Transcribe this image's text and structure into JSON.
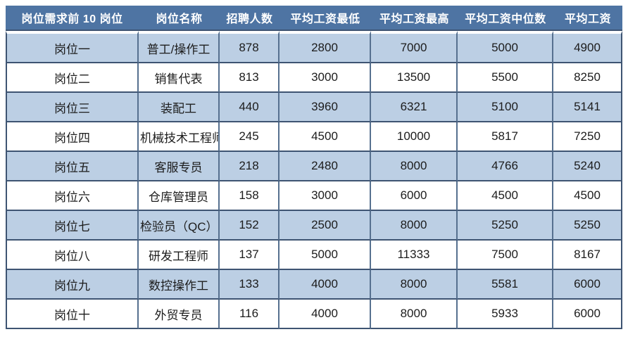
{
  "table": {
    "headers": [
      "岗位需求前 10 岗位",
      "岗位名称",
      "招聘人数",
      "平均工资最低",
      "平均工资最高",
      "平均工资中位数",
      "平均工资"
    ],
    "rows": [
      [
        "岗位一",
        "普工/操作工",
        "878",
        "2800",
        "7000",
        "5000",
        "4900"
      ],
      [
        "岗位二",
        "销售代表",
        "813",
        "3000",
        "13500",
        "5500",
        "8250"
      ],
      [
        "岗位三",
        "装配工",
        "440",
        "3960",
        "6321",
        "5100",
        "5141"
      ],
      [
        "岗位四",
        "机械技术工程师",
        "245",
        "4500",
        "10000",
        "5817",
        "7250"
      ],
      [
        "岗位五",
        "客服专员",
        "218",
        "2480",
        "8000",
        "4766",
        "5240"
      ],
      [
        "岗位六",
        "仓库管理员",
        "158",
        "3000",
        "6000",
        "4500",
        "4500"
      ],
      [
        "岗位七",
        "检验员（QC）",
        "152",
        "2500",
        "8000",
        "5250",
        "5250"
      ],
      [
        "岗位八",
        "研发工程师",
        "137",
        "5000",
        "11333",
        "7500",
        "8167"
      ],
      [
        "岗位九",
        "数控操作工",
        "133",
        "4000",
        "8000",
        "5581",
        "6000"
      ],
      [
        "岗位十",
        "外贸专员",
        "116",
        "4000",
        "8000",
        "5933",
        "6000"
      ]
    ]
  },
  "colors": {
    "header_bg": "#4e74a3",
    "header_text": "#ffffff",
    "row_bg": "#ffffff",
    "row_alt_bg": "#bccfe4",
    "border_horizontal": "#3e5472",
    "border_vertical": "#56708f",
    "body_text": "#1c1c1c"
  },
  "chart_data": {
    "type": "table",
    "title": "岗位需求前 10 岗位",
    "columns": [
      "岗位需求前 10 岗位",
      "岗位名称",
      "招聘人数",
      "平均工资最低",
      "平均工资最高",
      "平均工资中位数",
      "平均工资"
    ],
    "rows": [
      [
        "岗位一",
        "普工/操作工",
        878,
        2800,
        7000,
        5000,
        4900
      ],
      [
        "岗位二",
        "销售代表",
        813,
        3000,
        13500,
        5500,
        8250
      ],
      [
        "岗位三",
        "装配工",
        440,
        3960,
        6321,
        5100,
        5141
      ],
      [
        "岗位四",
        "机械技术工程师",
        245,
        4500,
        10000,
        5817,
        7250
      ],
      [
        "岗位五",
        "客服专员",
        218,
        2480,
        8000,
        4766,
        5240
      ],
      [
        "岗位六",
        "仓库管理员",
        158,
        3000,
        6000,
        4500,
        4500
      ],
      [
        "岗位七",
        "检验员（QC）",
        152,
        2500,
        8000,
        5250,
        5250
      ],
      [
        "岗位八",
        "研发工程师",
        137,
        5000,
        11333,
        7500,
        8167
      ],
      [
        "岗位九",
        "数控操作工",
        133,
        4000,
        8000,
        5581,
        6000
      ],
      [
        "岗位十",
        "外贸专员",
        116,
        4000,
        8000,
        5933,
        6000
      ]
    ],
    "layout": {
      "header_position": "top",
      "row_striping": "odd-rows-light-blue",
      "grid": true
    }
  }
}
